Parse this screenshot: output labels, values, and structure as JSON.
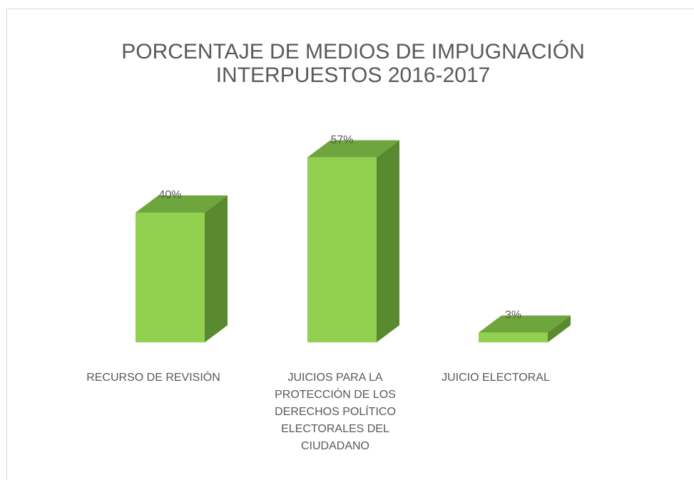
{
  "chart_data": {
    "type": "bar3d",
    "title": "PORCENTAJE DE MEDIOS DE IMPUGNACIÓN INTERPUESTOS 2016-2017",
    "categories": [
      "RECURSO DE REVISIÓN",
      "JUICIOS PARA LA PROTECCIÓN DE LOS DERECHOS POLÍTICO ELECTORALES DEL CIUDADANO",
      "JUICIO ELECTORAL"
    ],
    "values": [
      40,
      57,
      3
    ],
    "value_labels": [
      "40%",
      "57%",
      "3%"
    ],
    "color": "#92d050"
  }
}
